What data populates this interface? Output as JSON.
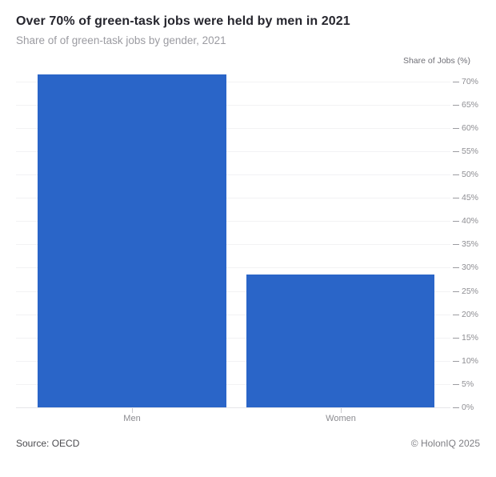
{
  "header": {
    "title": "Over 70% of green-task jobs were held by men in 2021",
    "subtitle": "Share of of green-task jobs by gender, 2021"
  },
  "chart_data": {
    "type": "bar",
    "title": "Over 70% of green-task jobs were held by men in 2021",
    "subtitle": "Share of of green-task jobs by gender, 2021",
    "categories": [
      "Men",
      "Women"
    ],
    "values": [
      71.5,
      28.5
    ],
    "xlabel": "",
    "ylabel": "Share of Jobs (%)",
    "ylim": [
      0,
      70
    ],
    "yticks": [
      0,
      5,
      10,
      15,
      20,
      25,
      30,
      35,
      40,
      45,
      50,
      55,
      60,
      65,
      70
    ],
    "ytick_suffix": "%",
    "axis_side": "right",
    "grid": true,
    "legend": "none",
    "bar_color": "#2a65c8"
  },
  "footer": {
    "source": "Source: OECD",
    "copyright": "© HolonIQ 2025"
  },
  "colors": {
    "bar": "#2a65c8",
    "gridline": "#f2f2f4",
    "axis_line": "#e6e6e9",
    "tick_label": "#8e8e93",
    "title": "#26262e",
    "subtitle": "#9b9ba1"
  }
}
